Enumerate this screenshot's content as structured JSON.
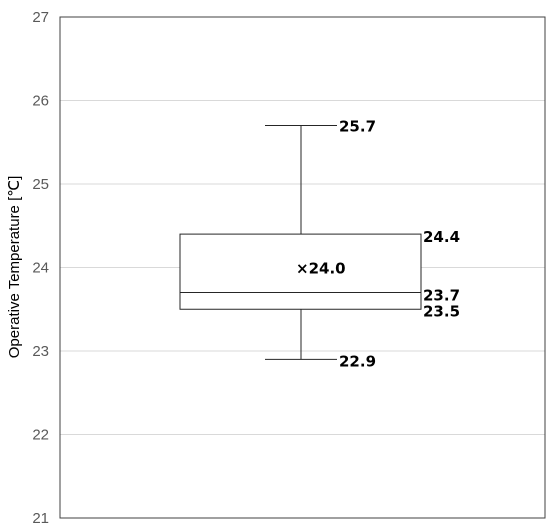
{
  "chart_data": {
    "type": "box",
    "ylabel": "Operative Temperature [℃]",
    "ylim": [
      21,
      27
    ],
    "yticks": [
      "21",
      "22",
      "23",
      "24",
      "25",
      "26",
      "27"
    ],
    "grid": true,
    "series": [
      {
        "whisker_low": 22.9,
        "q1": 23.5,
        "median": 23.7,
        "mean": 24.0,
        "q3": 24.4,
        "whisker_high": 25.7
      }
    ],
    "data_labels": {
      "whisker_high": "25.7",
      "q3": "24.4",
      "mean": "×24.0",
      "median": "23.7",
      "q1": "23.5",
      "whisker_low": "22.9"
    }
  }
}
